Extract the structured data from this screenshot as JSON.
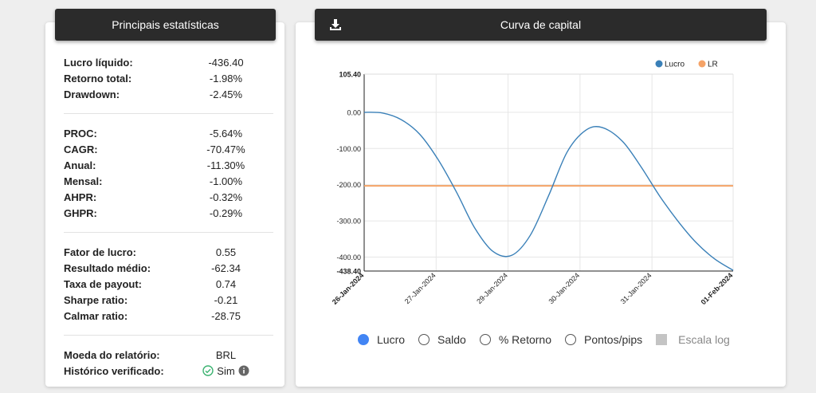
{
  "stats_panel": {
    "title": "Principais estatísticas",
    "groups": [
      [
        {
          "label": "Lucro líquido:",
          "value": "-436.40"
        },
        {
          "label": "Retorno total:",
          "value": "-1.98%"
        },
        {
          "label": "Drawdown:",
          "value": "-2.45%"
        }
      ],
      [
        {
          "label": "PROC:",
          "value": "-5.64%"
        },
        {
          "label": "CAGR:",
          "value": "-70.47%"
        },
        {
          "label": "Anual:",
          "value": "-11.30%"
        },
        {
          "label": "Mensal:",
          "value": "-1.00%"
        },
        {
          "label": "AHPR:",
          "value": "-0.32%"
        },
        {
          "label": "GHPR:",
          "value": "-0.29%"
        }
      ],
      [
        {
          "label": "Fator de lucro:",
          "value": "0.55"
        },
        {
          "label": "Resultado médio:",
          "value": "-62.34"
        },
        {
          "label": "Taxa de payout:",
          "value": "0.74"
        },
        {
          "label": "Sharpe ratio:",
          "value": "-0.21"
        },
        {
          "label": "Calmar ratio:",
          "value": "-28.75"
        }
      ],
      [
        {
          "label": "Moeda do relatório:",
          "value": "BRL"
        },
        {
          "label": "Histórico verificado:",
          "value": "Sim",
          "verified": true
        }
      ]
    ]
  },
  "chart_panel": {
    "title": "Curva de capital",
    "download_icon": "download-icon"
  },
  "chart_data": {
    "type": "line",
    "legend_position": "top-right",
    "ylim": [
      -438.4,
      105.4
    ],
    "grid": true,
    "y_ticks": [
      "105.40",
      "0.00",
      "-100.00",
      "-200.00",
      "-300.00",
      "-400.00",
      "-438.40"
    ],
    "x_ticks": [
      "26-Jan-2024",
      "27-Jan-2024",
      "29-Jan-2024",
      "30-Jan-2024",
      "31-Jan-2024",
      "01-Feb-2024"
    ],
    "series": [
      {
        "name": "Lucro",
        "color": "#3a80b8",
        "points": [
          {
            "x": 0.0,
            "y": 0
          },
          {
            "x": 0.05,
            "y": -2
          },
          {
            "x": 0.1,
            "y": -20
          },
          {
            "x": 0.15,
            "y": -60
          },
          {
            "x": 0.2,
            "y": -130
          },
          {
            "x": 0.25,
            "y": -220
          },
          {
            "x": 0.3,
            "y": -320
          },
          {
            "x": 0.35,
            "y": -385
          },
          {
            "x": 0.4,
            "y": -395
          },
          {
            "x": 0.45,
            "y": -340
          },
          {
            "x": 0.5,
            "y": -230
          },
          {
            "x": 0.55,
            "y": -110
          },
          {
            "x": 0.6,
            "y": -50
          },
          {
            "x": 0.645,
            "y": -42
          },
          {
            "x": 0.7,
            "y": -80
          },
          {
            "x": 0.75,
            "y": -150
          },
          {
            "x": 0.8,
            "y": -230
          },
          {
            "x": 0.85,
            "y": -300
          },
          {
            "x": 0.9,
            "y": -360
          },
          {
            "x": 0.95,
            "y": -405
          },
          {
            "x": 1.0,
            "y": -436.4
          }
        ]
      },
      {
        "name": "LR",
        "color": "#f5a367",
        "points": [
          {
            "x": 0.0,
            "y": -203
          },
          {
            "x": 1.0,
            "y": -203
          }
        ]
      }
    ]
  },
  "controls": {
    "radios": [
      {
        "label": "Lucro",
        "selected": true
      },
      {
        "label": "Saldo",
        "selected": false
      },
      {
        "label": "% Retorno",
        "selected": false
      },
      {
        "label": "Pontos/pips",
        "selected": false
      }
    ],
    "log_scale_label": "Escala log"
  }
}
